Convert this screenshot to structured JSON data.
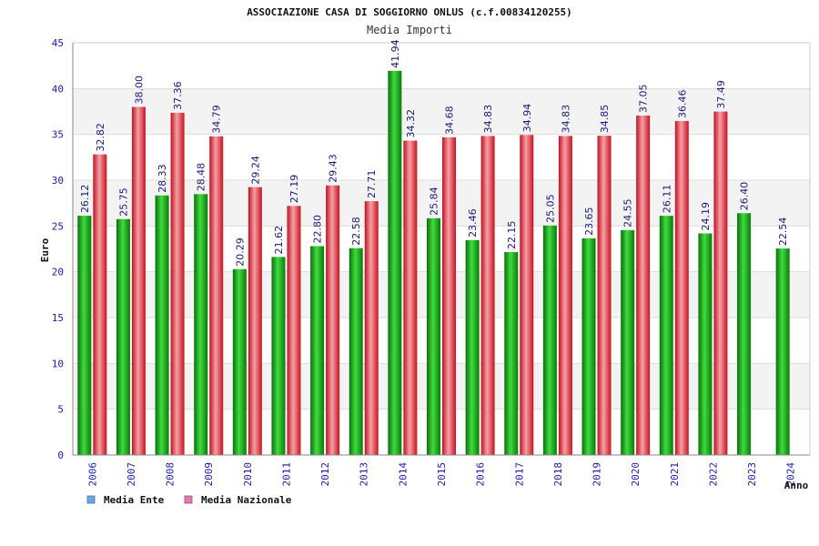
{
  "chart_data": {
    "type": "bar",
    "title": "ASSOCIAZIONE CASA DI SOGGIORNO ONLUS (c.f.00834120255)",
    "subtitle": "Media Importi",
    "xlabel": "Anno",
    "ylabel": "Euro",
    "ylim": [
      0,
      45
    ],
    "yticks": [
      0,
      5,
      10,
      15,
      20,
      25,
      30,
      35,
      40,
      45
    ],
    "grid": true,
    "legend_position": "bottom-left",
    "categories": [
      "2006",
      "2007",
      "2008",
      "2009",
      "2010",
      "2011",
      "2012",
      "2013",
      "2014",
      "2015",
      "2016",
      "2017",
      "2018",
      "2019",
      "2020",
      "2021",
      "2022",
      "2023",
      "2024"
    ],
    "series": [
      {
        "name": "Media Ente",
        "color": "#1ea51e",
        "legend_color": "#6aa6e8",
        "values": [
          26.12,
          25.75,
          28.33,
          28.48,
          20.29,
          21.62,
          22.8,
          22.58,
          41.94,
          25.84,
          23.46,
          22.15,
          25.05,
          23.65,
          24.55,
          26.11,
          24.19,
          26.4,
          22.54
        ],
        "labels": [
          "26.12",
          "25.75",
          "28.33",
          "28.48",
          "20.29",
          "21.62",
          "22.80",
          "22.58",
          "41.94",
          "25.84",
          "23.46",
          "22.15",
          "25.05",
          "23.65",
          "24.55",
          "26.11",
          "24.19",
          "26.40",
          "22.54"
        ]
      },
      {
        "name": "Media Nazionale",
        "color": "#e62e3a",
        "legend_color": "#e07ab0",
        "values": [
          32.82,
          38.0,
          37.36,
          34.79,
          29.24,
          27.19,
          29.43,
          27.71,
          34.32,
          34.68,
          34.83,
          34.94,
          34.83,
          34.85,
          37.05,
          36.46,
          37.49,
          null,
          null
        ],
        "labels": [
          "32.82",
          "38.00",
          "37.36",
          "34.79",
          "29.24",
          "27.19",
          "29.43",
          "27.71",
          "34.32",
          "34.68",
          "34.83",
          "34.94",
          "34.83",
          "34.85",
          "37.05",
          "36.46",
          "37.49",
          null,
          null
        ]
      }
    ]
  }
}
